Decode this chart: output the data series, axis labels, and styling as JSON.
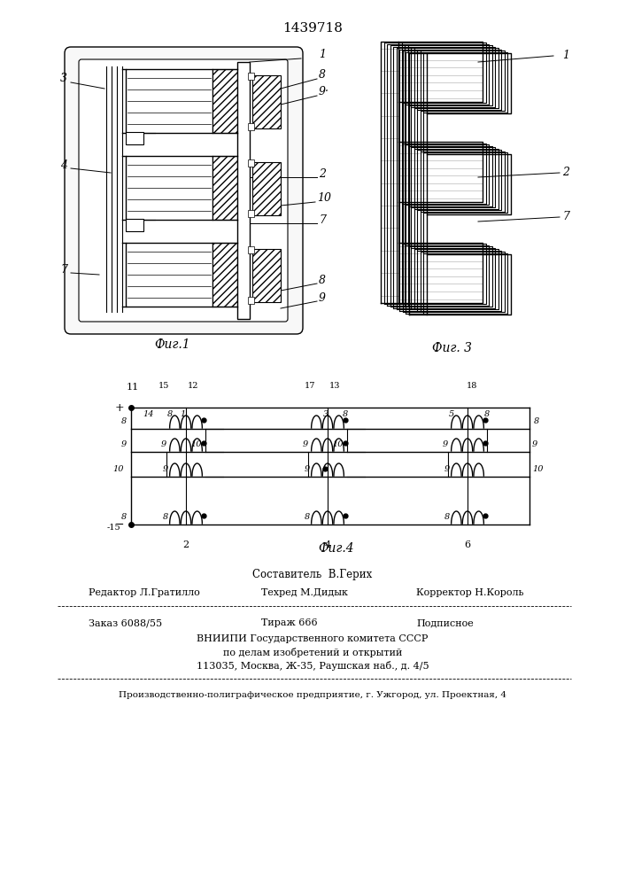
{
  "patent_number": "1439718",
  "background_color": "#ffffff",
  "line_color": "#000000",
  "fig1_caption": "Фиг.1",
  "fig3_caption": "Фиг. 3",
  "fig4_caption": "Фиг.4",
  "footer": {
    "compiler": "Составитель  В.Герих",
    "editor_label": "Редактор Л.Гратилло",
    "techred_label": "Техред М.Дидык",
    "corrector_label": "Корректор Н.Король",
    "order": "Заказ 6088/55",
    "circulation": "Тираж 666",
    "subscription": "Подписное",
    "vniiipi_line1": "ВНИИПИ Государственного комитета СССР",
    "vniiipi_line2": "по делам изобретений и открытий",
    "vniiipi_line3": "113035, Москва, Ж-35, Раушская наб., д. 4/5",
    "production": "Производственно-полиграфическое предприятие, г. Ужгород, ул. Проектная, 4"
  }
}
